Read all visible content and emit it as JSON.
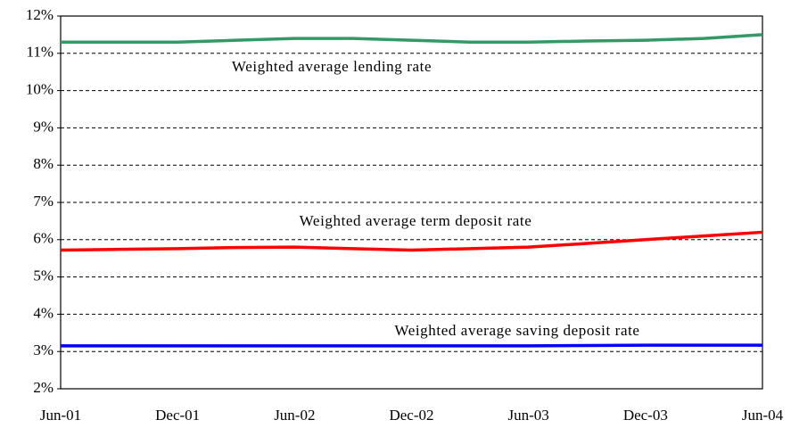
{
  "chart_data": {
    "type": "line",
    "categories": [
      "Jun-01",
      null,
      "Dec-01",
      null,
      "Jun-02",
      null,
      "Dec-02",
      null,
      "Jun-03",
      null,
      "Dec-03",
      null,
      "Jun-04"
    ],
    "series": [
      {
        "name": "Weighted average lending rate",
        "color": "#339966",
        "values": [
          11.3,
          11.3,
          11.3,
          11.35,
          11.4,
          11.4,
          11.35,
          11.3,
          11.3,
          11.33,
          11.35,
          11.4,
          11.5
        ]
      },
      {
        "name": "Weighted average term deposit rate",
        "color": "#ff0000",
        "values": [
          5.72,
          5.74,
          5.76,
          5.79,
          5.8,
          5.76,
          5.72,
          5.76,
          5.8,
          5.9,
          6.0,
          6.1,
          6.2
        ]
      },
      {
        "name": "Weighted average saving deposit rate",
        "color": "#0000ff",
        "values": [
          3.15,
          3.15,
          3.15,
          3.15,
          3.15,
          3.15,
          3.15,
          3.15,
          3.15,
          3.16,
          3.17,
          3.17,
          3.17
        ]
      }
    ],
    "ylim": [
      2,
      12
    ],
    "yticks": [
      {
        "value": 2,
        "label": "2%"
      },
      {
        "value": 3,
        "label": "3%"
      },
      {
        "value": 4,
        "label": "4%"
      },
      {
        "value": 5,
        "label": "5%"
      },
      {
        "value": 6,
        "label": "6%"
      },
      {
        "value": 7,
        "label": "7%"
      },
      {
        "value": 8,
        "label": "8%"
      },
      {
        "value": 9,
        "label": "9%"
      },
      {
        "value": 10,
        "label": "10%"
      },
      {
        "value": 11,
        "label": "11%"
      },
      {
        "value": 12,
        "label": "12%"
      }
    ],
    "grid": true,
    "legend": "inline"
  }
}
